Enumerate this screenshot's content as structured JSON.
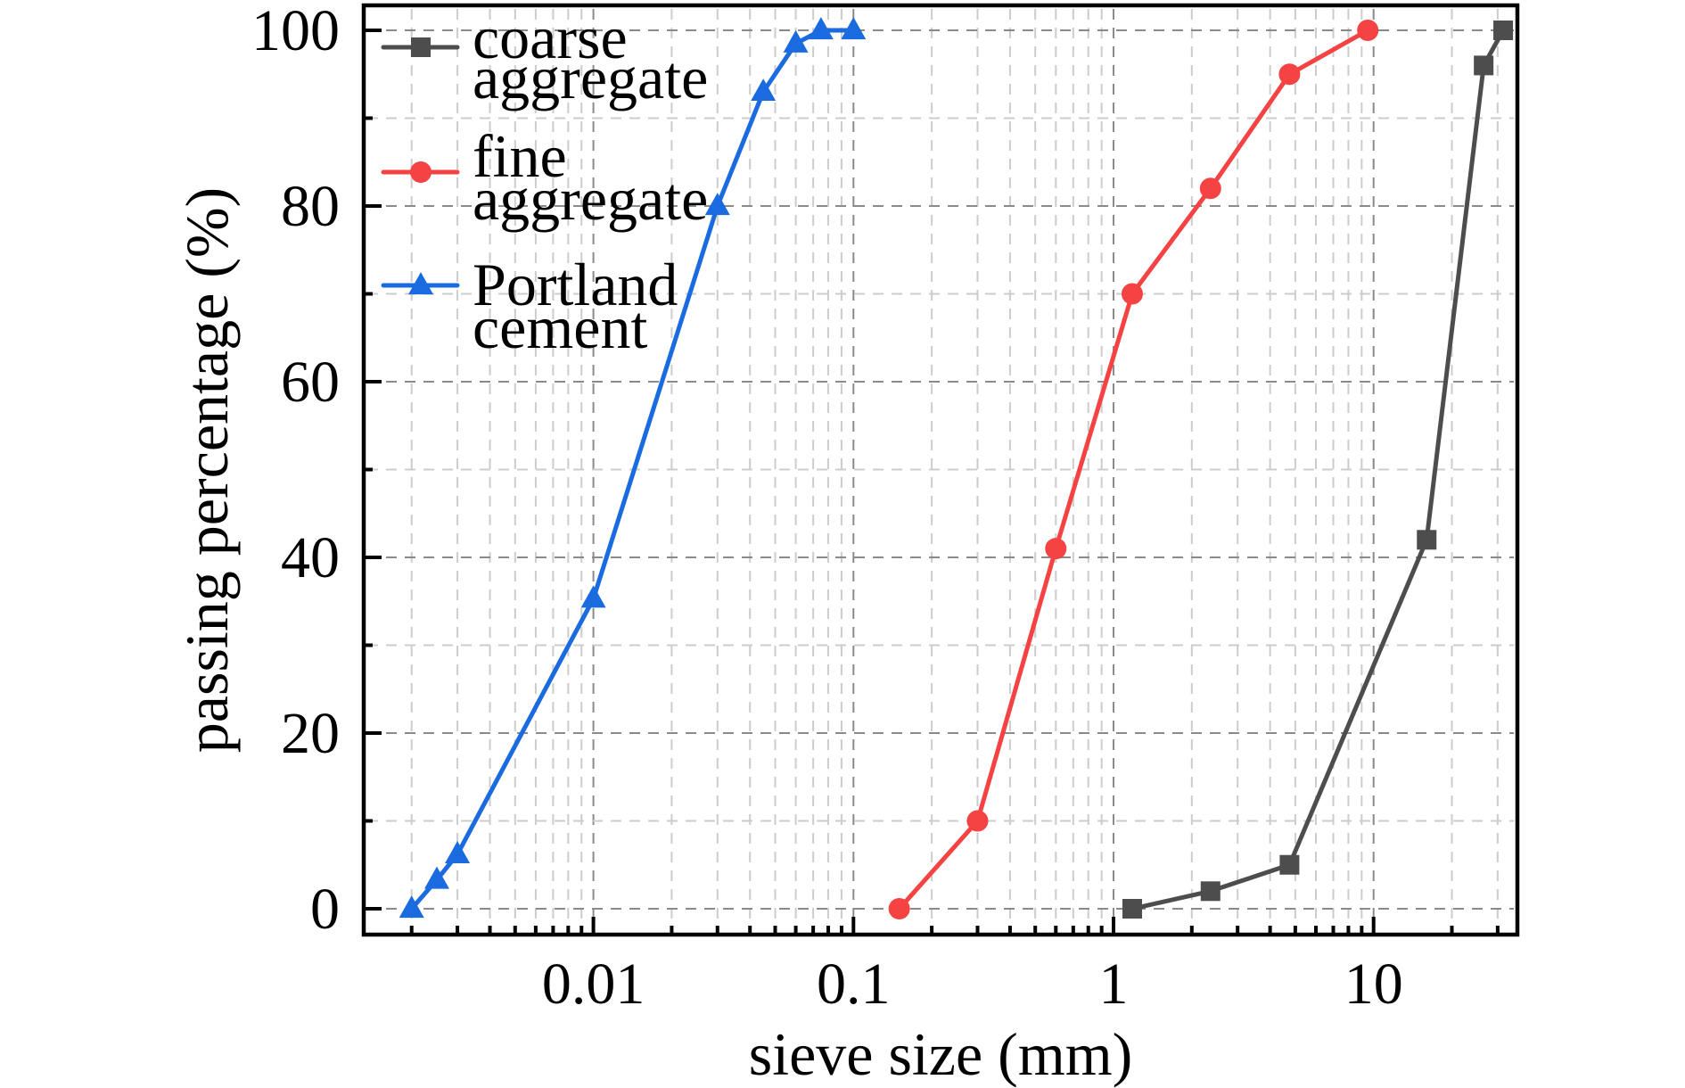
{
  "chart_data": {
    "type": "line",
    "title": "",
    "xlabel": "sieve size (mm)",
    "ylabel": "passing percentage (%)",
    "xscale": "log",
    "xlim": [
      0.00129,
      34.5
    ],
    "ylim": [
      -3.5,
      103.5
    ],
    "grid": true,
    "legend_position": "top-left",
    "x_ticks": [
      {
        "value": 0.01,
        "label": "0.01"
      },
      {
        "value": 0.1,
        "label": "0.1"
      },
      {
        "value": 1,
        "label": "1"
      },
      {
        "value": 10,
        "label": "10"
      }
    ],
    "y_ticks": [
      {
        "value": 0,
        "label": "0"
      },
      {
        "value": 20,
        "label": "20"
      },
      {
        "value": 40,
        "label": "40"
      },
      {
        "value": 60,
        "label": "60"
      },
      {
        "value": 80,
        "label": "80"
      },
      {
        "value": 100,
        "label": "100"
      }
    ],
    "y_minor_ticks": [
      10,
      30,
      50,
      70,
      90
    ],
    "series": [
      {
        "name": "coarse aggregate",
        "legend_lines": [
          "coarse",
          "aggregate"
        ],
        "color": "#4d4d4d",
        "marker": "square",
        "x": [
          1.18,
          2.36,
          4.75,
          16,
          26.5,
          31.5
        ],
        "y": [
          0,
          2,
          5,
          42,
          96,
          100
        ]
      },
      {
        "name": "fine aggregate",
        "legend_lines": [
          "fine",
          "aggregate"
        ],
        "color": "#f54242",
        "marker": "circle",
        "x": [
          0.15,
          0.3,
          0.6,
          1.18,
          2.36,
          4.75,
          9.5
        ],
        "y": [
          0,
          10,
          41,
          70,
          82,
          95,
          100
        ]
      },
      {
        "name": "Portland cement",
        "legend_lines": [
          "Portland",
          "cement"
        ],
        "color": "#1a6ae0",
        "marker": "triangle",
        "x": [
          0.002,
          0.0025,
          0.003,
          0.01,
          0.03,
          0.045,
          0.06,
          0.075,
          0.1
        ],
        "y": [
          0,
          3.3,
          6.2,
          35.3,
          80,
          93,
          98.5,
          100,
          100
        ]
      }
    ]
  }
}
